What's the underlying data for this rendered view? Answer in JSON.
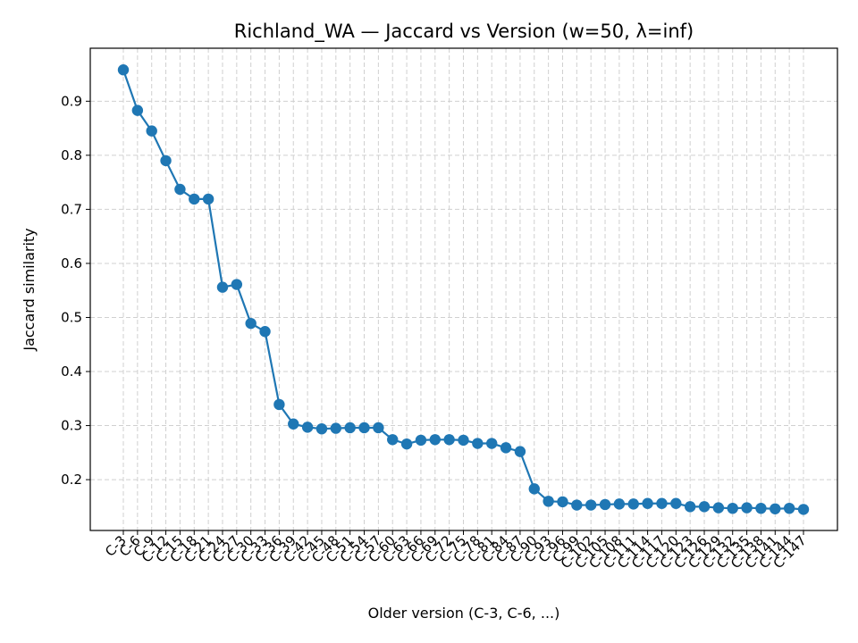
{
  "chart_data": {
    "type": "line",
    "title": "Richland_WA — Jaccard vs Version (w=50, λ=inf)",
    "xlabel": "Older version (C-3, C-6, ...)",
    "ylabel": "Jaccard similarity",
    "categories": [
      "C-3",
      "C-6",
      "C-9",
      "C-12",
      "C-15",
      "C-18",
      "C-21",
      "C-24",
      "C-27",
      "C-30",
      "C-33",
      "C-36",
      "C-39",
      "C-42",
      "C-45",
      "C-48",
      "C-51",
      "C-54",
      "C-57",
      "C-60",
      "C-63",
      "C-66",
      "C-69",
      "C-72",
      "C-75",
      "C-78",
      "C-81",
      "C-84",
      "C-87",
      "C-90",
      "C-93",
      "C-96",
      "C-99",
      "C-102",
      "C-105",
      "C-108",
      "C-111",
      "C-114",
      "C-117",
      "C-120",
      "C-123",
      "C-126",
      "C-129",
      "C-132",
      "C-135",
      "C-138",
      "C-141",
      "C-144",
      "C-147"
    ],
    "values": [
      0.958,
      0.883,
      0.845,
      0.79,
      0.737,
      0.719,
      0.719,
      0.556,
      0.561,
      0.489,
      0.474,
      0.339,
      0.303,
      0.297,
      0.294,
      0.295,
      0.296,
      0.296,
      0.296,
      0.274,
      0.266,
      0.273,
      0.274,
      0.274,
      0.273,
      0.267,
      0.267,
      0.259,
      0.252,
      0.183,
      0.16,
      0.159,
      0.153,
      0.153,
      0.154,
      0.155,
      0.155,
      0.156,
      0.156,
      0.156,
      0.15,
      0.15,
      0.148,
      0.147,
      0.148,
      0.147,
      0.146,
      0.147,
      0.145
    ],
    "yticks": [
      0.2,
      0.3,
      0.4,
      0.5,
      0.6,
      0.7,
      0.8,
      0.9
    ],
    "ylim": [
      0.106,
      0.998
    ],
    "grid": true,
    "color": "#1f77b4"
  }
}
